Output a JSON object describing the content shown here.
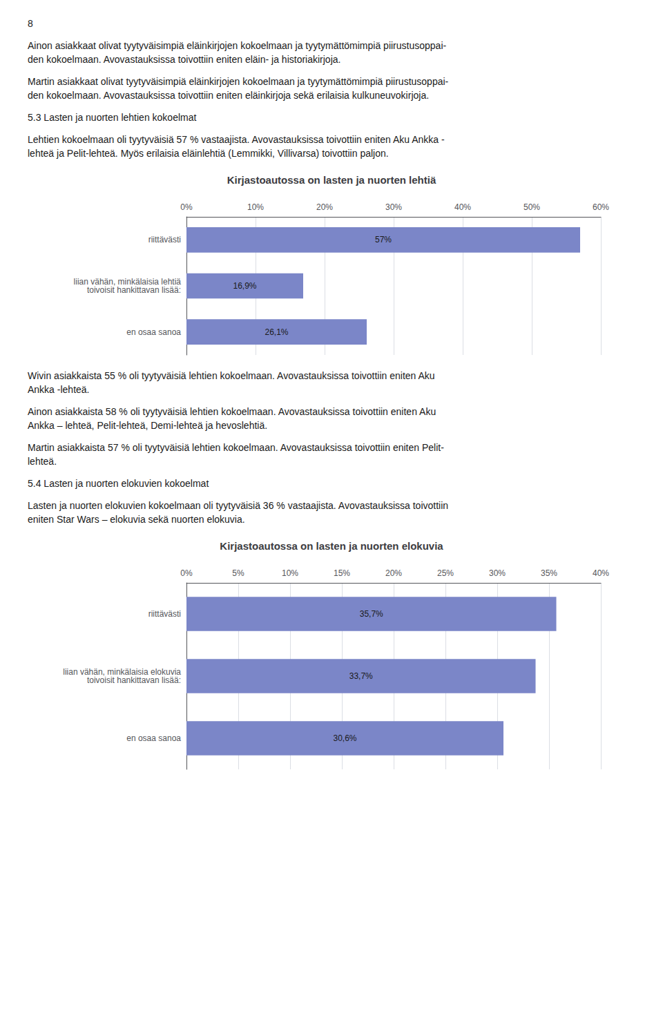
{
  "chart_data": [
    {
      "type": "bar",
      "orientation": "horizontal",
      "title": "Kirjastoautossa on lasten ja nuorten lehtiä",
      "annotations": [
        "8",
        "Ainon asiakkaat olivat tyytyväisimpiä eläinkirjojen kokoelmaan ja tyytymättömimpiä piirustusoppai-\nden kokoelmaan. Avovastauksissa toivottiin eniten eläin- ja historiakirjoja.",
        "Martin asiakkaat olivat tyytyväisimpiä eläinkirjojen kokoelmaan ja tyytymättömimpiä piirustusoppai-\nden kokoelmaan. Avovastauksissa toivottiin eniten eläinkirjoja sekä erilaisia kulkuneuvokirjoja.",
        "5.3 Lasten ja nuorten lehtien kokoelmat",
        "Lehtien kokoelmaan oli tyytyväisiä 57 % vastaajista. Avovastauksissa toivottiin eniten Aku Ankka -\nlehteä ja Pelit-lehteä. Myös erilaisia eläinlehtiä (Lemmikki, Villivarsa) toivottiin paljon."
      ],
      "categories": [
        "riittävästi",
        "liian vähän, minkälaisia lehtiä\ntoivoisit hankittavan lisää:",
        "en osaa sanoa"
      ],
      "values": [
        57.0,
        16.9,
        26.1
      ],
      "value_labels": [
        "57%",
        "16,9%",
        "26,1%"
      ],
      "data_labels": true,
      "color": "#7b86c8",
      "xlim": [
        0,
        60
      ],
      "xticks": [
        {
          "value": 0,
          "label": "0%"
        },
        {
          "value": 10,
          "label": "10%"
        },
        {
          "value": 20,
          "label": "20%"
        },
        {
          "value": 30,
          "label": "30%"
        },
        {
          "value": 40,
          "label": "40%"
        },
        {
          "value": 50,
          "label": "50%"
        },
        {
          "value": 60,
          "label": "60%"
        }
      ],
      "grid": true
    },
    {
      "type": "bar",
      "orientation": "horizontal",
      "title": "Kirjastoautossa on lasten ja nuorten elokuvia",
      "annotations": [
        "Wivin asiakkaista 55 % oli tyytyväisiä lehtien kokoelmaan. Avovastauksissa toivottiin eniten Aku\nAnkka -lehteä.",
        "Ainon asiakkaista 58 % oli tyytyväisiä lehtien kokoelmaan. Avovastauksissa toivottiin eniten Aku\nAnkka – lehteä, Pelit-lehteä, Demi-lehteä ja hevoslehtiä.",
        "Martin asiakkaista 57 % oli tyytyväisiä lehtien kokoelmaan. Avovastauksissa toivottiin eniten Pelit-\nlehteä.",
        "5.4 Lasten ja nuorten elokuvien kokoelmat",
        "Lasten ja nuorten elokuvien kokoelmaan oli tyytyväisiä 36 % vastaajista. Avovastauksissa toivottiin\neniten Star Wars – elokuvia sekä nuorten elokuvia."
      ],
      "categories": [
        "riittävästi",
        "liian vähän, minkälaisia elokuvia\ntoivoisit hankittavan lisää:",
        "en osaa sanoa"
      ],
      "values": [
        35.7,
        33.7,
        30.6
      ],
      "value_labels": [
        "35,7%",
        "33,7%",
        "30,6%"
      ],
      "data_labels": true,
      "color": "#7b86c8",
      "xlim": [
        0,
        40
      ],
      "xticks": [
        {
          "value": 0,
          "label": "0%"
        },
        {
          "value": 5,
          "label": "5%"
        },
        {
          "value": 10,
          "label": "10%"
        },
        {
          "value": 15,
          "label": "15%"
        },
        {
          "value": 20,
          "label": "20%"
        },
        {
          "value": 25,
          "label": "25%"
        },
        {
          "value": 30,
          "label": "30%"
        },
        {
          "value": 35,
          "label": "35%"
        },
        {
          "value": 40,
          "label": "40%"
        }
      ],
      "grid": true
    }
  ]
}
